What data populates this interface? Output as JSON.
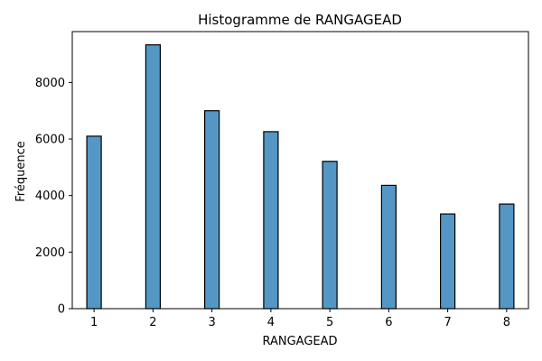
{
  "chart_data": {
    "type": "bar",
    "title": "Histogramme de RANGAGEAD",
    "xlabel": "RANGAGEAD",
    "ylabel": "Fréquence",
    "categories": [
      1,
      2,
      3,
      4,
      5,
      6,
      7,
      8
    ],
    "values": [
      6100,
      9330,
      7000,
      6260,
      5210,
      4360,
      3350,
      3700
    ],
    "xlim": [
      0.63,
      8.37
    ],
    "ylim": [
      0,
      9800
    ],
    "x_ticks": [
      "1",
      "2",
      "3",
      "4",
      "5",
      "6",
      "7",
      "8"
    ],
    "y_ticks": [
      "0",
      "2000",
      "4000",
      "6000",
      "8000"
    ],
    "bar_color": "#5497c5",
    "grid": false,
    "legend": "none"
  }
}
